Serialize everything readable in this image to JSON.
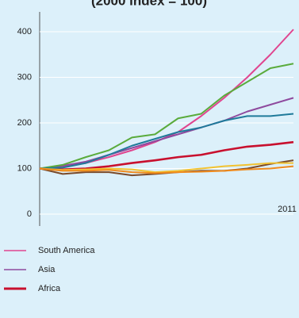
{
  "chart_data": {
    "type": "line",
    "title": "(2000 index = 100)",
    "categories": [
      null,
      null,
      null,
      null,
      null,
      null,
      null,
      null,
      null,
      null,
      null,
      "2011"
    ],
    "series": [
      {
        "name": "South America",
        "color": "#e0458f",
        "values": [
          100,
          104,
          112,
          125,
          140,
          158,
          180,
          215,
          255,
          300,
          350,
          405
        ]
      },
      {
        "name": "Asia",
        "color": "#8e4a9e",
        "values": [
          100,
          106,
          115,
          130,
          145,
          160,
          175,
          190,
          205,
          225,
          240,
          255
        ]
      },
      {
        "name": "Africa",
        "color": "#c8102e",
        "values": [
          100,
          98,
          100,
          105,
          112,
          118,
          125,
          130,
          140,
          148,
          152,
          158
        ]
      },
      {
        "color": "#5aab3c",
        "values": [
          100,
          108,
          125,
          140,
          168,
          175,
          210,
          220,
          260,
          290,
          320,
          330
        ]
      },
      {
        "color": "#1f7a9a",
        "values": [
          100,
          102,
          112,
          130,
          150,
          165,
          180,
          190,
          205,
          215,
          215,
          220
        ]
      },
      {
        "color": "#7a4a2a",
        "values": [
          100,
          88,
          92,
          92,
          85,
          88,
          92,
          95,
          95,
          100,
          110,
          118
        ]
      },
      {
        "color": "#f2c230",
        "values": [
          100,
          97,
          98,
          100,
          98,
          92,
          95,
          100,
          105,
          108,
          112,
          112
        ]
      },
      {
        "color": "#f08a1c",
        "values": [
          100,
          95,
          95,
          97,
          92,
          90,
          92,
          93,
          95,
          98,
          100,
          105
        ]
      }
    ],
    "ylim": [
      0,
      400
    ],
    "yticks": [
      0,
      100,
      200,
      300,
      400
    ],
    "grid": true
  }
}
